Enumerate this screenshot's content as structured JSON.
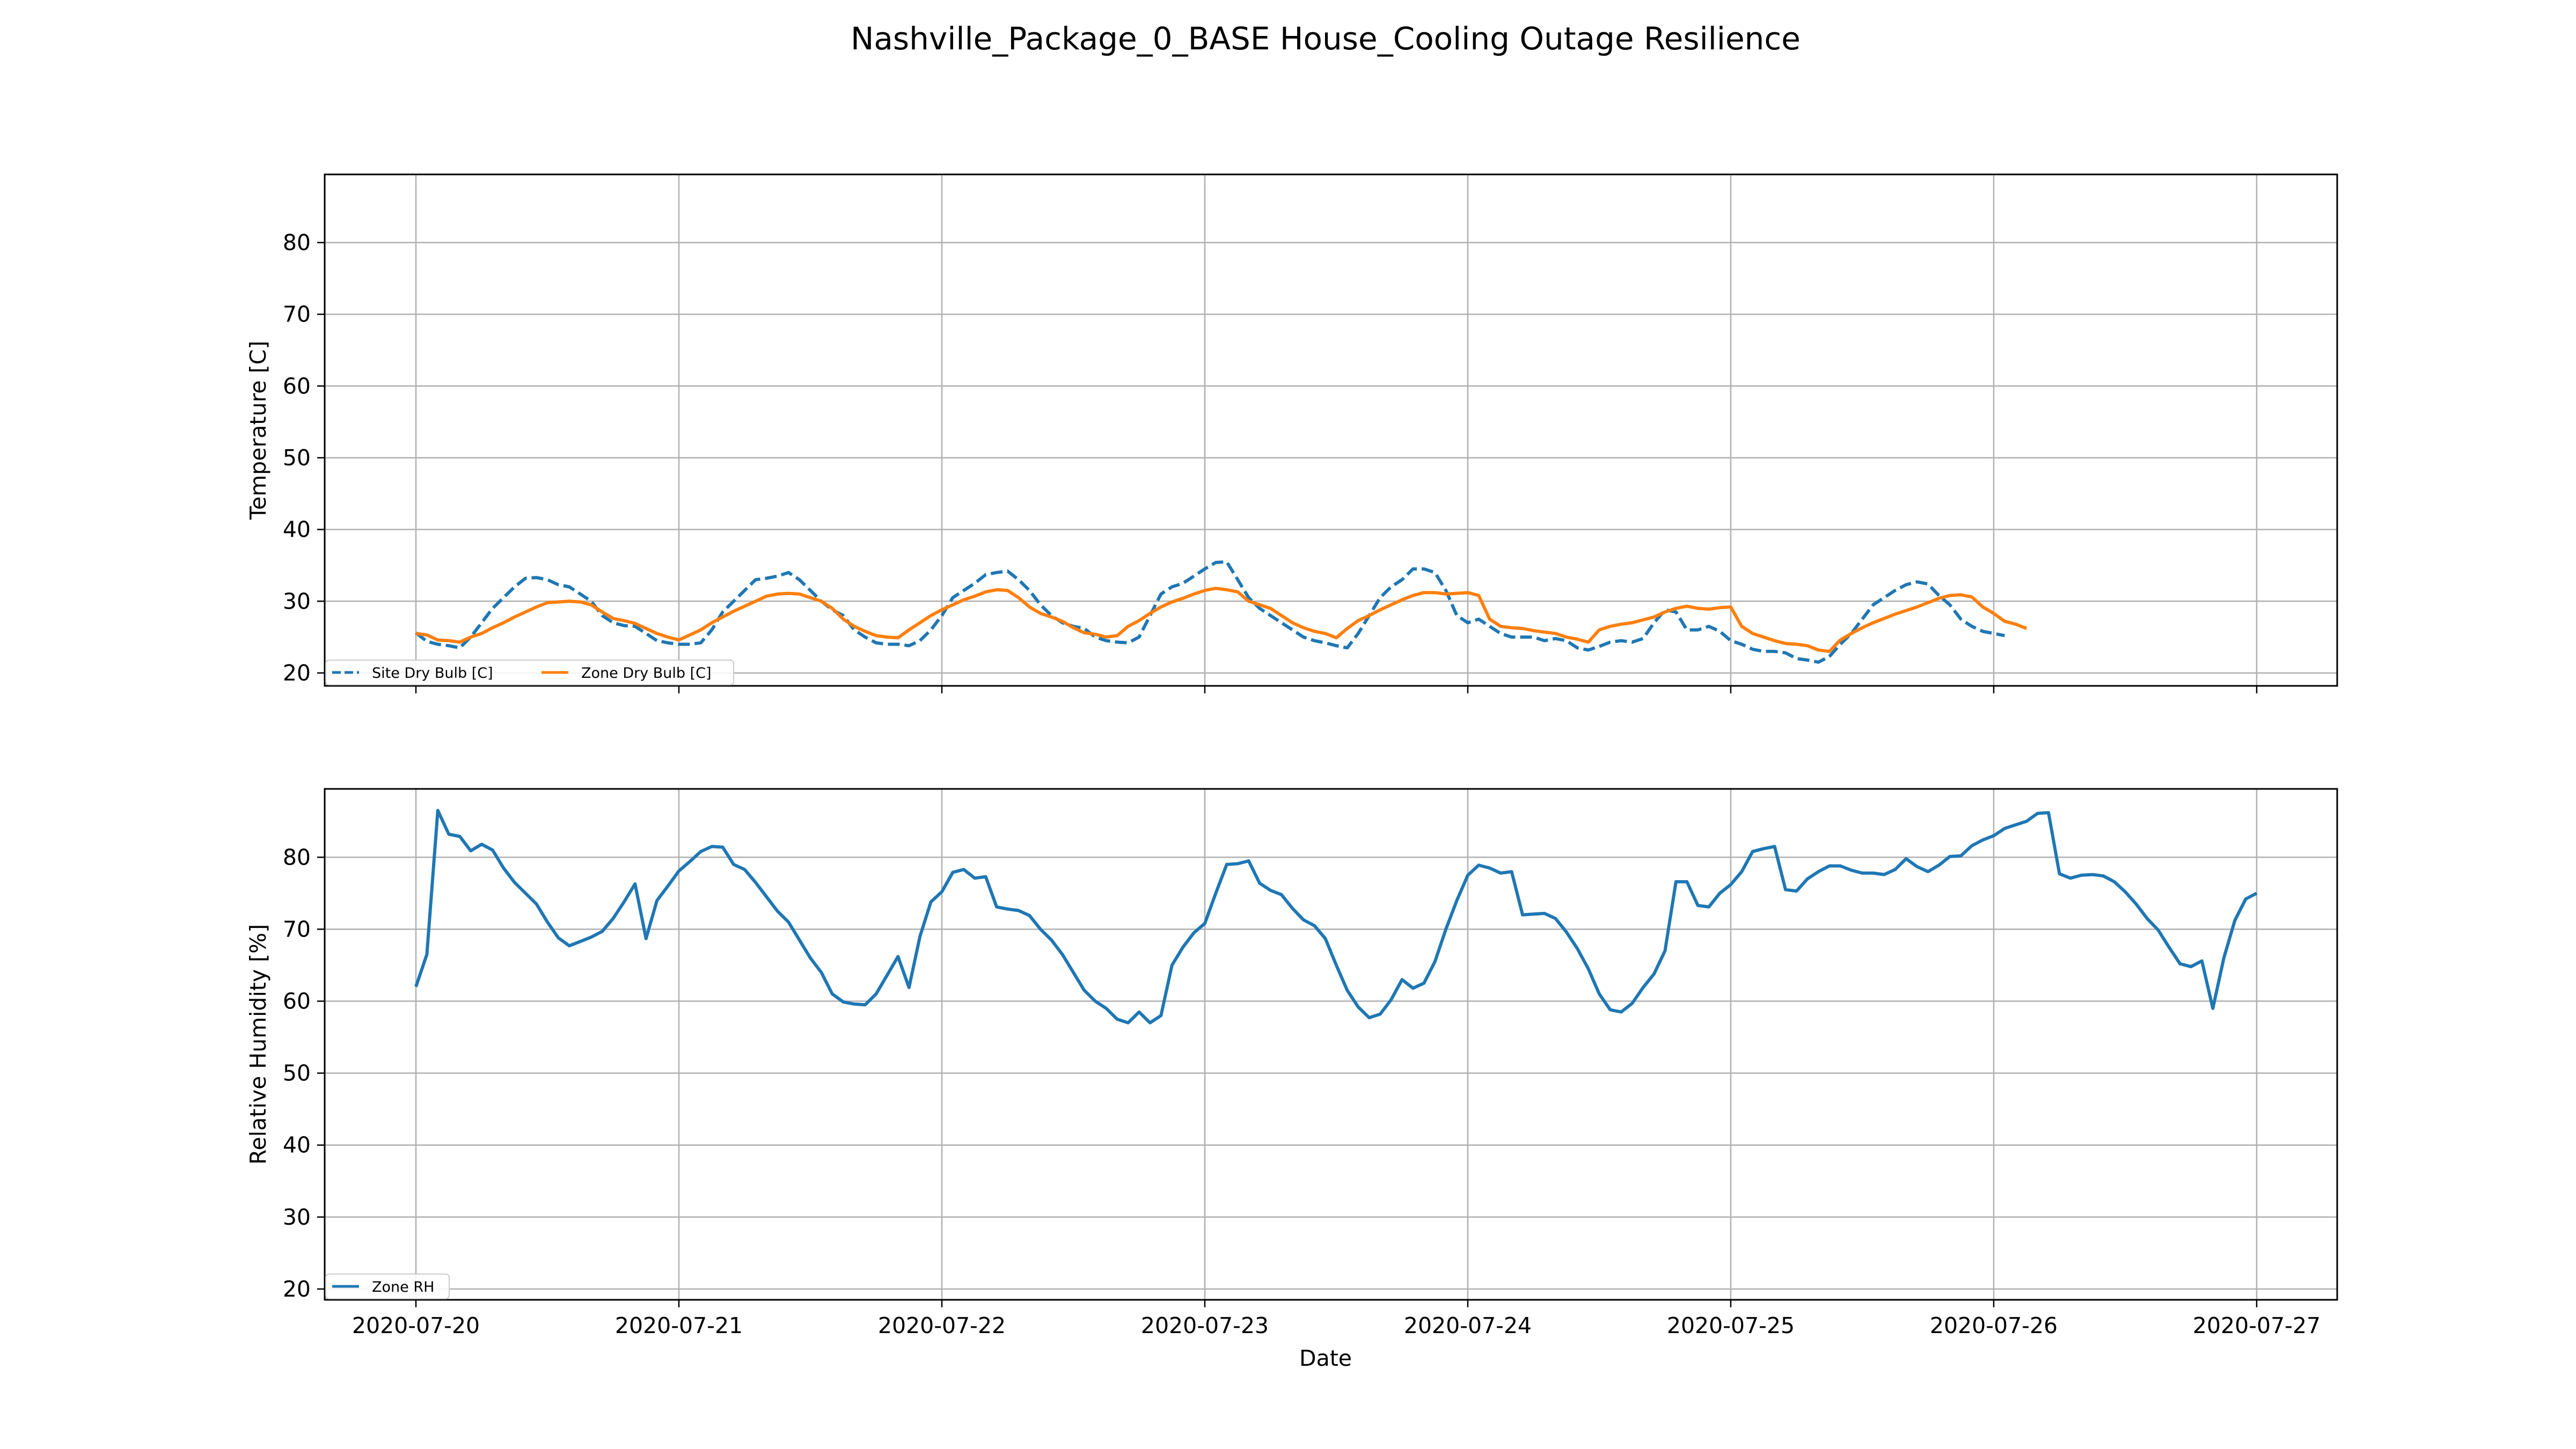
{
  "figure": {
    "title": "Nashville_Package_0_BASE House_Cooling Outage Resilience",
    "xlabel": "Date"
  },
  "chart_data": [
    {
      "type": "line",
      "title": "",
      "ylabel": "Temperature [C]",
      "xlabel": "",
      "ylim": [
        18.2,
        89.5
      ],
      "yticks": [
        20,
        30,
        40,
        50,
        60,
        70,
        80
      ],
      "xticks": [
        "2020-07-20",
        "2020-07-21",
        "2020-07-22",
        "2020-07-23",
        "2020-07-24",
        "2020-07-25",
        "2020-07-26",
        "2020-07-27"
      ],
      "xtick_labels_visible": false,
      "grid": true,
      "legend": "bottom-left",
      "legend_ncol": 2,
      "series": [
        {
          "name": "Site Dry Bulb [C]",
          "color": "#1f77b4",
          "style": "dashed",
          "values": [
            25.6,
            24.4,
            24.0,
            23.8,
            23.5,
            25.0,
            27.0,
            29.0,
            30.5,
            32.0,
            33.2,
            33.3,
            33.0,
            32.3,
            32.0,
            31.0,
            30.0,
            28.0,
            27.0,
            26.6,
            26.5,
            25.5,
            24.5,
            24.2,
            24.0,
            24.0,
            24.2,
            26.0,
            28.5,
            30.0,
            31.5,
            33.0,
            33.2,
            33.5,
            34.0,
            33.0,
            31.5,
            30.0,
            28.8,
            28.0,
            26.0,
            25.0,
            24.2,
            24.0,
            24.0,
            23.8,
            24.5,
            26.0,
            28.0,
            30.5,
            31.5,
            32.5,
            33.7,
            34.0,
            34.2,
            33.0,
            31.5,
            29.5,
            28.0,
            27.0,
            26.5,
            26.2,
            25.0,
            24.5,
            24.3,
            24.2,
            25.0,
            28.0,
            31.0,
            32.0,
            32.5,
            33.5,
            34.5,
            35.4,
            35.5,
            33.0,
            30.5,
            29.0,
            28.0,
            27.0,
            26.0,
            25.0,
            24.5,
            24.2,
            23.8,
            23.5,
            25.5,
            28.0,
            30.5,
            32.0,
            33.0,
            34.5,
            34.5,
            34.0,
            31.5,
            28.0,
            27.0,
            27.5,
            26.5,
            25.5,
            25.0,
            25.0,
            25.0,
            24.5,
            24.8,
            24.5,
            23.5,
            23.2,
            23.7,
            24.3,
            24.5,
            24.3,
            24.8,
            27.0,
            28.8,
            28.5,
            26.0,
            26.0,
            26.5,
            25.8,
            24.5,
            24.0,
            23.3,
            23.0,
            23.0,
            22.8,
            22.0,
            21.8,
            21.5,
            22.3,
            24.0,
            25.5,
            27.5,
            29.5,
            30.5,
            31.5,
            32.3,
            32.7,
            32.4,
            30.8,
            29.5,
            27.5,
            26.5,
            25.8,
            25.5,
            25.2
          ]
        },
        {
          "name": "Zone Dry Bulb [C]",
          "color": "#ff7f0e",
          "style": "solid",
          "values": [
            25.5,
            25.3,
            24.6,
            24.5,
            24.3,
            25.0,
            25.5,
            26.3,
            27.0,
            27.8,
            28.5,
            29.2,
            29.8,
            29.9,
            30.0,
            29.9,
            29.5,
            28.5,
            27.6,
            27.3,
            26.9,
            26.2,
            25.5,
            25.0,
            24.6,
            25.3,
            26.0,
            27.0,
            27.8,
            28.6,
            29.3,
            30.0,
            30.7,
            31.0,
            31.1,
            31.0,
            30.5,
            30.0,
            29.0,
            27.5,
            26.5,
            25.8,
            25.2,
            25.0,
            24.9,
            26.0,
            27.0,
            28.0,
            28.8,
            29.5,
            30.2,
            30.7,
            31.3,
            31.6,
            31.5,
            30.5,
            29.2,
            28.3,
            27.8,
            27.2,
            26.3,
            25.6,
            25.4,
            25.0,
            25.2,
            26.5,
            27.3,
            28.3,
            29.2,
            29.9,
            30.4,
            31.0,
            31.5,
            31.8,
            31.6,
            31.3,
            30.0,
            29.5,
            29.0,
            28.0,
            27.0,
            26.3,
            25.8,
            25.5,
            24.9,
            26.2,
            27.3,
            28.0,
            28.8,
            29.5,
            30.2,
            30.8,
            31.2,
            31.2,
            31.0,
            31.1,
            31.2,
            30.8,
            27.5,
            26.5,
            26.3,
            26.2,
            25.9,
            25.7,
            25.5,
            25.0,
            24.7,
            24.3,
            26.0,
            26.5,
            26.8,
            27.0,
            27.4,
            27.8,
            28.5,
            29.0,
            29.3,
            29.0,
            28.9,
            29.1,
            29.2,
            26.5,
            25.5,
            25.0,
            24.5,
            24.1,
            24.0,
            23.8,
            23.2,
            23.0,
            24.6,
            25.5,
            26.3,
            27.0,
            27.6,
            28.2,
            28.7,
            29.2,
            29.8,
            30.4,
            30.8,
            30.9,
            30.6,
            29.2,
            28.3,
            27.2,
            26.8,
            26.2
          ]
        }
      ]
    },
    {
      "type": "line",
      "title": "",
      "ylabel": "Relative Humidity [%]",
      "xlabel": "Date",
      "ylim": [
        18.5,
        89.5
      ],
      "yticks": [
        20,
        30,
        40,
        50,
        60,
        70,
        80
      ],
      "xticks": [
        "2020-07-20",
        "2020-07-21",
        "2020-07-22",
        "2020-07-23",
        "2020-07-24",
        "2020-07-25",
        "2020-07-26",
        "2020-07-27"
      ],
      "xtick_labels_visible": true,
      "grid": true,
      "legend": "bottom-left",
      "legend_ncol": 1,
      "series": [
        {
          "name": "Zone RH",
          "color": "#1f77b4",
          "style": "solid",
          "values": [
            62.0,
            66.5,
            86.5,
            83.2,
            82.9,
            80.9,
            81.8,
            81.0,
            78.5,
            76.5,
            75.0,
            73.5,
            71.0,
            68.8,
            67.7,
            68.3,
            68.9,
            69.7,
            71.5,
            73.8,
            76.3,
            68.7,
            74.0,
            76.0,
            78.1,
            79.4,
            80.8,
            81.5,
            81.4,
            79.0,
            78.3,
            76.5,
            74.5,
            72.5,
            71.0,
            68.5,
            66.0,
            64.0,
            61.0,
            59.9,
            59.6,
            59.5,
            61.0,
            63.6,
            66.2,
            61.9,
            69.0,
            73.8,
            75.2,
            77.9,
            78.3,
            77.1,
            77.3,
            73.1,
            72.8,
            72.6,
            71.9,
            70.0,
            68.5,
            66.5,
            64.0,
            61.5,
            60.0,
            59.0,
            57.5,
            57.0,
            58.5,
            57.0,
            58.0,
            65.0,
            67.5,
            69.5,
            70.8,
            75.0,
            79.0,
            79.1,
            79.5,
            76.4,
            75.4,
            74.8,
            72.9,
            71.3,
            70.5,
            68.7,
            65.0,
            61.5,
            59.2,
            57.7,
            58.2,
            60.2,
            63.0,
            61.8,
            62.5,
            65.5,
            70.0,
            74.0,
            77.5,
            78.9,
            78.5,
            77.8,
            78.0,
            72.0,
            72.1,
            72.2,
            71.5,
            69.6,
            67.3,
            64.5,
            61.0,
            58.8,
            58.5,
            59.7,
            61.9,
            63.8,
            67.0,
            76.6,
            76.6,
            73.3,
            73.1,
            75.0,
            76.2,
            78.0,
            80.8,
            81.2,
            81.5,
            75.5,
            75.3,
            77.0,
            78.0,
            78.8,
            78.8,
            78.2,
            77.8,
            77.8,
            77.6,
            78.3,
            79.8,
            78.7,
            78.0,
            78.9,
            80.1,
            80.2,
            81.6,
            82.4,
            83.0,
            84.0,
            84.5,
            85.0,
            86.1,
            86.2,
            77.7,
            77.1,
            77.5,
            77.6,
            77.4,
            76.6,
            75.2,
            73.5,
            71.5,
            69.9,
            67.5,
            65.2,
            64.8,
            65.6,
            59.0,
            66.0,
            71.2,
            74.2,
            75.0
          ]
        }
      ]
    }
  ]
}
